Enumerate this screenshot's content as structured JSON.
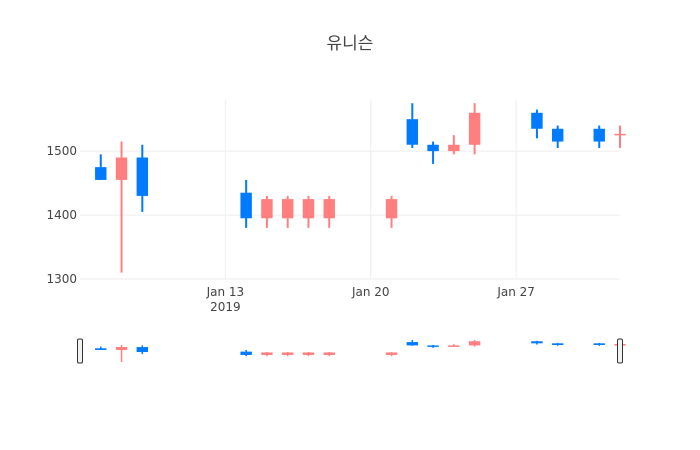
{
  "chart_data": {
    "type": "candlestick",
    "title": "유니슨",
    "colors": {
      "increasing": "#FF7F7F",
      "decreasing": "#007BFF"
    },
    "ylim": [
      1300,
      1580
    ],
    "yticks": [
      1300,
      1400,
      1500
    ],
    "xlim": [
      "2019-01-06",
      "2019-02-01"
    ],
    "xticks": [
      {
        "date": "2019-01-13",
        "label": "Jan 13",
        "sublabel": "2019"
      },
      {
        "date": "2019-01-20",
        "label": "Jan 20",
        "sublabel": ""
      },
      {
        "date": "2019-01-27",
        "label": "Jan 27",
        "sublabel": ""
      }
    ],
    "grid": true,
    "rangeslider": true,
    "candles": [
      {
        "date": "2019-01-07",
        "open": 1475,
        "high": 1495,
        "low": 1455,
        "close": 1455
      },
      {
        "date": "2019-01-08",
        "open": 1455,
        "high": 1515,
        "low": 1310,
        "close": 1490
      },
      {
        "date": "2019-01-09",
        "open": 1490,
        "high": 1510,
        "low": 1405,
        "close": 1430
      },
      {
        "date": "2019-01-14",
        "open": 1435,
        "high": 1455,
        "low": 1380,
        "close": 1395
      },
      {
        "date": "2019-01-15",
        "open": 1395,
        "high": 1430,
        "low": 1380,
        "close": 1425
      },
      {
        "date": "2019-01-16",
        "open": 1395,
        "high": 1430,
        "low": 1380,
        "close": 1425
      },
      {
        "date": "2019-01-17",
        "open": 1395,
        "high": 1430,
        "low": 1380,
        "close": 1425
      },
      {
        "date": "2019-01-18",
        "open": 1395,
        "high": 1430,
        "low": 1380,
        "close": 1425
      },
      {
        "date": "2019-01-21",
        "open": 1395,
        "high": 1430,
        "low": 1380,
        "close": 1425
      },
      {
        "date": "2019-01-22",
        "open": 1550,
        "high": 1575,
        "low": 1505,
        "close": 1510
      },
      {
        "date": "2019-01-23",
        "open": 1510,
        "high": 1515,
        "low": 1480,
        "close": 1500
      },
      {
        "date": "2019-01-24",
        "open": 1500,
        "high": 1525,
        "low": 1495,
        "close": 1510
      },
      {
        "date": "2019-01-25",
        "open": 1510,
        "high": 1575,
        "low": 1495,
        "close": 1560
      },
      {
        "date": "2019-01-28",
        "open": 1560,
        "high": 1565,
        "low": 1520,
        "close": 1535
      },
      {
        "date": "2019-01-29",
        "open": 1535,
        "high": 1540,
        "low": 1505,
        "close": 1515
      },
      {
        "date": "2019-01-31",
        "open": 1535,
        "high": 1540,
        "low": 1505,
        "close": 1515
      },
      {
        "date": "2019-02-01",
        "open": 1525,
        "high": 1540,
        "low": 1505,
        "close": 1527
      }
    ]
  }
}
